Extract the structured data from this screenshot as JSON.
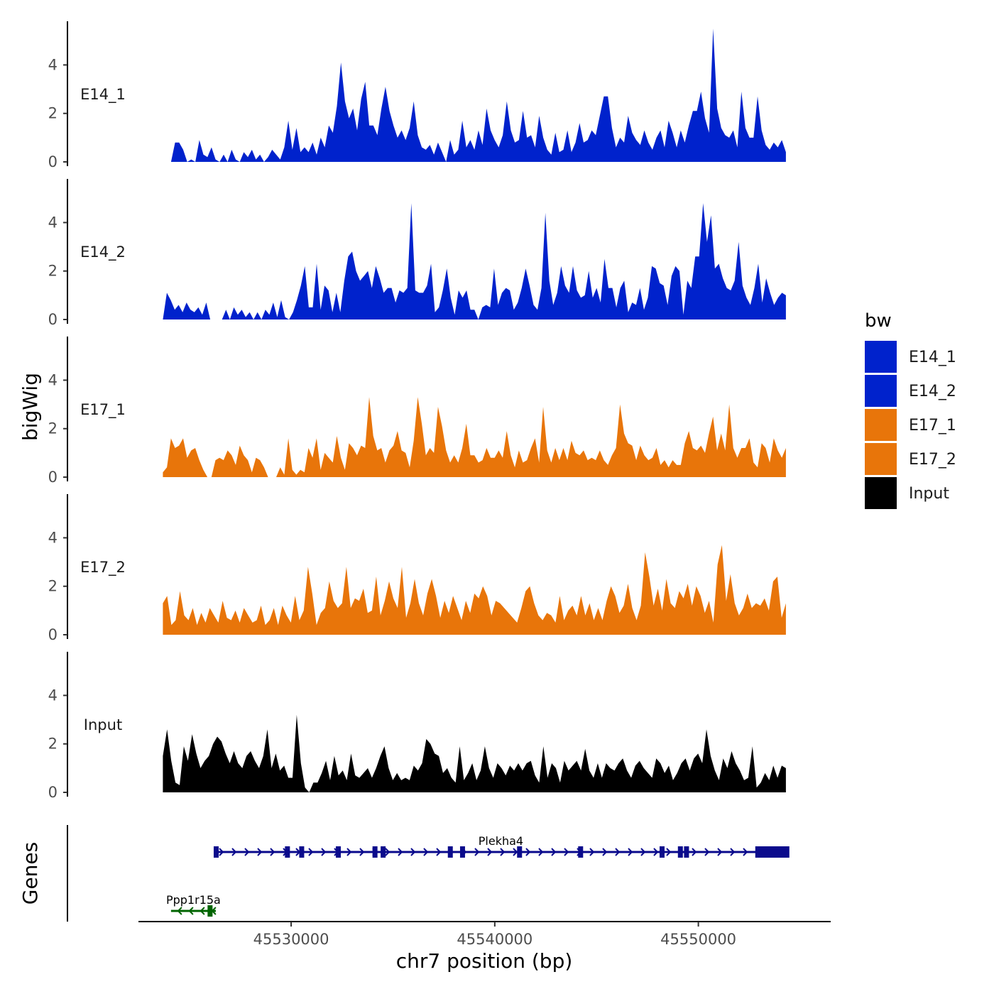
{
  "chart_data": {
    "type": "area",
    "title": "",
    "xlabel": "chr7 position (bp)",
    "ylabel": "bigWig",
    "gene_panel_label": "Genes",
    "xlim": [
      45522500,
      45556500
    ],
    "ylim": [
      0,
      5.8
    ],
    "x_ticks": [
      45530000,
      45540000,
      45550000
    ],
    "x_tick_labels": [
      "45530000",
      "45540000",
      "45550000"
    ],
    "y_ticks": [
      0,
      2,
      4
    ],
    "y_tick_labels": [
      "0",
      "2",
      "4"
    ],
    "legend": {
      "title": "bw",
      "placement": "right",
      "entries": [
        {
          "label": "E14_1",
          "color": "#0022cc"
        },
        {
          "label": "E14_2",
          "color": "#0022cc"
        },
        {
          "label": "E17_1",
          "color": "#e8750a"
        },
        {
          "label": "E17_2",
          "color": "#e8750a"
        },
        {
          "label": "Input",
          "color": "#000000"
        }
      ]
    },
    "series": [
      {
        "name": "E14_1",
        "color": "#0022cc",
        "x_start": 45524100,
        "x_end": 45554300,
        "values": [
          0,
          0.8,
          0.8,
          0.5,
          0,
          0.1,
          0,
          0.9,
          0.3,
          0.2,
          0.6,
          0.1,
          0,
          0.3,
          0,
          0.5,
          0.1,
          0,
          0.4,
          0.2,
          0.5,
          0.1,
          0.3,
          0,
          0.2,
          0.5,
          0.3,
          0.1,
          0.6,
          1.7,
          0.5,
          1.4,
          0.4,
          0.6,
          0.4,
          0.8,
          0.3,
          1,
          0.6,
          1.5,
          1.2,
          2.3,
          4.1,
          2.5,
          1.8,
          2.2,
          1.3,
          2.6,
          3.3,
          1.5,
          1.5,
          1.1,
          2.2,
          3.1,
          2.1,
          1.5,
          1,
          1.3,
          0.9,
          1.4,
          2.5,
          1.1,
          0.6,
          0.5,
          0.7,
          0.3,
          0.8,
          0.4,
          0,
          0.9,
          0.3,
          0.5,
          1.7,
          0.6,
          0.9,
          0.5,
          1.3,
          0.7,
          2.2,
          1.3,
          0.9,
          0.6,
          1.1,
          2.5,
          1.3,
          0.8,
          0.9,
          2.1,
          1,
          1.1,
          0.6,
          1.9,
          1,
          0.5,
          0.3,
          1.2,
          0.4,
          0.5,
          1.3,
          0.4,
          0.8,
          1.6,
          0.8,
          0.9,
          1.3,
          1.1,
          1.9,
          2.7,
          2.7,
          1.4,
          0.6,
          1,
          0.8,
          1.9,
          1.2,
          0.9,
          0.7,
          1.3,
          0.8,
          0.5,
          1,
          1.3,
          0.6,
          1.7,
          1.2,
          0.6,
          1.3,
          0.8,
          1.5,
          2.1,
          2.1,
          2.9,
          1.8,
          1.2,
          5.5,
          2.2,
          1.4,
          1.1,
          1,
          1.3,
          0.6,
          2.9,
          1.4,
          1,
          1,
          2.7,
          1.3,
          0.7,
          0.5,
          0.8,
          0.6,
          0.9,
          0.4
        ]
      },
      {
        "name": "E14_2",
        "color": "#0022cc",
        "x_start": 45523700,
        "x_end": 45554300,
        "values": [
          0,
          1.1,
          0.8,
          0.4,
          0.6,
          0.3,
          0.7,
          0.4,
          0.3,
          0.5,
          0.2,
          0.7,
          0,
          0,
          0,
          0,
          0.4,
          0,
          0.5,
          0.2,
          0.4,
          0.1,
          0.3,
          0,
          0.3,
          0,
          0.4,
          0.2,
          0.7,
          0.1,
          0.8,
          0.1,
          0,
          0.3,
          0.8,
          1.4,
          2.2,
          0.5,
          0.5,
          2.3,
          0.4,
          1.4,
          1.2,
          0.3,
          1.1,
          0.3,
          1.6,
          2.6,
          2.8,
          2,
          1.6,
          1.8,
          2,
          1.3,
          2.2,
          1.7,
          1.1,
          1.3,
          1.3,
          0.7,
          1.2,
          1.1,
          1.3,
          4.8,
          1.2,
          1.1,
          1.1,
          1.4,
          2.3,
          0.3,
          0.5,
          1.2,
          2.1,
          0.9,
          0.2,
          1.2,
          0.9,
          1.2,
          0.4,
          0.4,
          0,
          0.5,
          0.6,
          0.5,
          2.1,
          0.6,
          1.1,
          1.3,
          1.2,
          0.4,
          0.7,
          1.3,
          2.1,
          1.4,
          0.6,
          0.4,
          1.3,
          4.4,
          1.6,
          0.6,
          1.1,
          2.2,
          1.4,
          1.1,
          2.2,
          1.2,
          0.9,
          1,
          2,
          0.9,
          1.3,
          0.7,
          2.5,
          1.3,
          1.3,
          0.5,
          1.3,
          1.6,
          0.3,
          0.7,
          0.6,
          1.3,
          0.4,
          0.9,
          2.2,
          2.1,
          1.5,
          1.4,
          0.6,
          1.8,
          2.2,
          2,
          0.2,
          1.6,
          1.3,
          2.6,
          2.6,
          4.8,
          3.2,
          4.3,
          2.1,
          2.3,
          1.7,
          1.3,
          1.2,
          1.6,
          3.2,
          1.4,
          0.9,
          0.6,
          1.3,
          2.3,
          0.7,
          1.7,
          1.1,
          0.6,
          0.9,
          1.1,
          1
        ]
      },
      {
        "name": "E17_1",
        "color": "#e8750a",
        "x_start": 45523700,
        "x_end": 45554300,
        "values": [
          0.2,
          0.4,
          1.6,
          1.2,
          1.3,
          1.6,
          0.8,
          1.1,
          1.2,
          0.7,
          0.3,
          0,
          0,
          0.7,
          0.8,
          0.7,
          1.1,
          0.9,
          0.5,
          1.3,
          0.9,
          0.7,
          0.2,
          0.8,
          0.7,
          0.4,
          0,
          0,
          0,
          0.4,
          0.1,
          1.6,
          0.3,
          0.1,
          0.3,
          0.2,
          1.2,
          0.8,
          1.6,
          0.3,
          1,
          0.8,
          0.6,
          1.7,
          0.8,
          0.3,
          1.4,
          1.2,
          0.9,
          1.3,
          1.2,
          3.3,
          1.7,
          1.1,
          1.2,
          0.6,
          1.1,
          1.3,
          1.9,
          1.1,
          1,
          0.4,
          1.5,
          3.3,
          2.2,
          0.9,
          1.2,
          1,
          2.9,
          2.1,
          1.1,
          0.6,
          0.9,
          0.6,
          1.2,
          2.2,
          0.9,
          0.9,
          0.6,
          0.7,
          1.2,
          0.8,
          0.8,
          1.1,
          0.8,
          1.9,
          0.9,
          0.4,
          1.1,
          0.6,
          0.7,
          1.2,
          1.6,
          0.6,
          2.9,
          1.1,
          0.6,
          1.2,
          0.7,
          1.2,
          0.7,
          1.5,
          1,
          0.9,
          1.1,
          0.7,
          0.8,
          0.7,
          1.1,
          0.7,
          0.5,
          0.9,
          1.2,
          3,
          1.8,
          1.4,
          1.3,
          0.7,
          1.3,
          0.9,
          0.7,
          0.8,
          1.2,
          0.5,
          0.7,
          0.4,
          0.7,
          0.5,
          0.5,
          1.4,
          1.9,
          1.2,
          1.1,
          1.3,
          1,
          1.8,
          2.5,
          1.1,
          1.8,
          1.1,
          3,
          1.2,
          0.8,
          1.2,
          1.2,
          1.6,
          0.6,
          0.4,
          1.4,
          1.2,
          0.6,
          1.6,
          1.1,
          0.8,
          1.2
        ]
      },
      {
        "name": "E17_2",
        "color": "#e8750a",
        "x_start": 45523700,
        "x_end": 45554300,
        "values": [
          1.3,
          1.6,
          0.4,
          0.6,
          1.8,
          0.8,
          0.6,
          1.1,
          0.4,
          0.9,
          0.5,
          1.1,
          0.8,
          0.5,
          1.4,
          0.7,
          0.6,
          1,
          0.5,
          1.1,
          0.8,
          0.5,
          0.6,
          1.2,
          0.4,
          0.6,
          1.1,
          0.4,
          1.2,
          0.8,
          0.5,
          1.6,
          0.6,
          1,
          2.8,
          1.7,
          0.4,
          0.9,
          1.1,
          2.2,
          1.4,
          1.1,
          1.3,
          2.8,
          1.1,
          1.5,
          1.4,
          1.9,
          0.9,
          1,
          2.4,
          0.8,
          1.4,
          2.2,
          1.5,
          1.1,
          2.8,
          0.7,
          1.3,
          2.3,
          1.3,
          0.8,
          1.7,
          2.3,
          1.6,
          0.7,
          1.4,
          0.9,
          1.6,
          1.1,
          0.6,
          1.4,
          0.9,
          1.7,
          1.5,
          2,
          1.6,
          0.8,
          1.4,
          1.3,
          1.1,
          0.9,
          0.7,
          0.5,
          1.1,
          1.8,
          2,
          1.3,
          0.8,
          0.6,
          0.9,
          0.8,
          0.5,
          1.6,
          0.6,
          1,
          1.2,
          0.8,
          1.6,
          0.8,
          1.3,
          0.6,
          1.1,
          0.6,
          1.4,
          2,
          1.6,
          0.9,
          1.2,
          2.1,
          1.1,
          0.6,
          1.2,
          3.4,
          2.4,
          1.2,
          1.9,
          1,
          2.3,
          1.3,
          1.1,
          1.8,
          1.5,
          2.1,
          1.2,
          2,
          1.6,
          0.9,
          1.4,
          0.5,
          2.9,
          3.7,
          1.4,
          2.5,
          1.3,
          0.8,
          1.1,
          1.7,
          1.1,
          1.3,
          1.2,
          1.5,
          1,
          2.2,
          2.4,
          0.7,
          1.3
        ]
      },
      {
        "name": "Input",
        "color": "#000000",
        "x_start": 45523700,
        "x_end": 45554300,
        "values": [
          1.5,
          2.6,
          1.3,
          0.4,
          0.3,
          1.9,
          1.3,
          2.4,
          1.6,
          1,
          1.3,
          1.5,
          2,
          2.3,
          2.1,
          1.6,
          1.2,
          1.7,
          1.2,
          1,
          1.5,
          1.7,
          1.3,
          1,
          1.5,
          2.6,
          1,
          1.6,
          0.9,
          1.1,
          0.6,
          0.6,
          3.2,
          1.2,
          0.2,
          0,
          0.4,
          0.4,
          0.8,
          1.3,
          0.5,
          1.5,
          0.7,
          0.9,
          0.5,
          1.6,
          0.7,
          0.6,
          0.8,
          1,
          0.6,
          1,
          1.5,
          1.9,
          1,
          0.5,
          0.8,
          0.5,
          0.6,
          0.5,
          1.1,
          0.9,
          1.2,
          2.2,
          2,
          1.6,
          1.5,
          0.8,
          1,
          0.6,
          0.4,
          1.9,
          0.5,
          0.8,
          1.2,
          0.5,
          0.9,
          1.9,
          1,
          0.6,
          1.2,
          1,
          0.7,
          1.1,
          0.9,
          1.2,
          0.9,
          1.2,
          1.3,
          0.7,
          0.4,
          1.9,
          0.6,
          1.2,
          1,
          0.4,
          1.3,
          0.9,
          1.1,
          1.3,
          0.9,
          1.8,
          0.9,
          0.6,
          1.2,
          0.6,
          1.2,
          1,
          0.9,
          1.2,
          1.4,
          0.9,
          0.6,
          1.1,
          1.3,
          1,
          0.8,
          0.6,
          1.4,
          1.2,
          0.8,
          1.1,
          0.5,
          0.8,
          1.2,
          1.4,
          0.9,
          1.4,
          1.6,
          1.2,
          2.6,
          1.5,
          0.9,
          0.5,
          1.4,
          1,
          1.7,
          1.2,
          0.9,
          0.5,
          0.6,
          1.9,
          0.2,
          0.4,
          0.8,
          0.5,
          1.1,
          0.6,
          1.1,
          1
        ]
      }
    ],
    "genes": [
      {
        "name": "Plekha4",
        "start": 45526300,
        "end": 45554300,
        "strand": "+",
        "color": "#0a0a8c",
        "row": 1,
        "exons": [
          45526300,
          45529800,
          45530500,
          45532300,
          45534100,
          45534500,
          45537800,
          45538400,
          45541200,
          45544200,
          45548200,
          45549100,
          45549400,
          45552900,
          45553400,
          45553900
        ]
      },
      {
        "name": "Ppp1r15a",
        "start": 45524100,
        "end": 45526300,
        "strand": "-",
        "color": "#006400",
        "row": 2,
        "exons": [
          45526000
        ]
      }
    ]
  }
}
